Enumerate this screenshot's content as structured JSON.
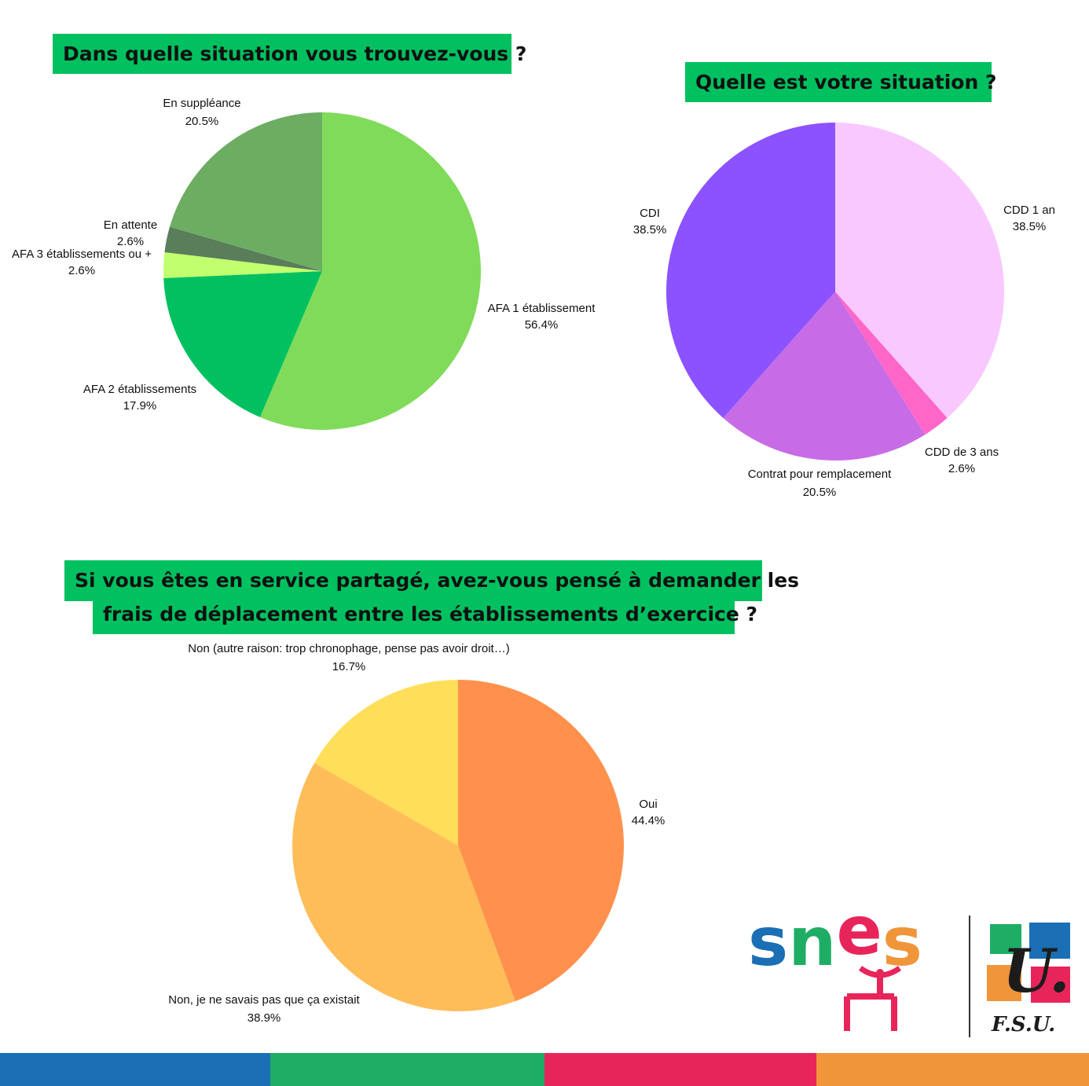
{
  "chart_data": [
    {
      "type": "pie",
      "title": "Dans quelle situation vous trouvez-vous ?",
      "slices": [
        {
          "label": "AFA 1 établissement",
          "value": 56.4,
          "value_label": "56.4%",
          "color": "#80db5a"
        },
        {
          "label": "AFA 2 établissements",
          "value": 17.9,
          "value_label": "17.9%",
          "color": "#00c060"
        },
        {
          "label": "AFA 3 établissements ou +",
          "value": 2.6,
          "value_label": "2.6%",
          "color": "#c2ff6e"
        },
        {
          "label": "En attente",
          "value": 2.6,
          "value_label": "2.6%",
          "color": "#5a7d5a"
        },
        {
          "label": "En suppléance",
          "value": 20.5,
          "value_label": "20.5%",
          "color": "#6cad62"
        }
      ]
    },
    {
      "type": "pie",
      "title": "Quelle est votre situation ?",
      "slices": [
        {
          "label": "CDD 1 an",
          "value": 38.5,
          "value_label": "38.5%",
          "color": "#f8c8ff"
        },
        {
          "label": "CDD de 3 ans",
          "value": 2.6,
          "value_label": "2.6%",
          "color": "#ff66c8"
        },
        {
          "label": "Contrat pour remplacement",
          "value": 20.5,
          "value_label": "20.5%",
          "color": "#c76ce6"
        },
        {
          "label": "CDI",
          "value": 38.5,
          "value_label": "38.5%",
          "color": "#8c52ff"
        }
      ]
    },
    {
      "type": "pie",
      "title_line1": "Si vous êtes en service partagé, avez-vous pensé à demander les",
      "title_line2": "frais de déplacement entre les établissements d’exercice ?",
      "slices": [
        {
          "label": "Oui",
          "value": 44.4,
          "value_label": "44.4%",
          "color": "#ff914d"
        },
        {
          "label": "Non, je ne savais pas que ça existait",
          "value": 38.9,
          "value_label": "38.9%",
          "color": "#ffbd59"
        },
        {
          "label": "Non (autre raison: trop chronophage, pense pas avoir droit…)",
          "value": 16.7,
          "value_label": "16.7%",
          "color": "#ffde59"
        }
      ]
    }
  ],
  "logo": {
    "snes_text": "snes",
    "fsu_letter": "U.",
    "fsu_text": "F.S.U.",
    "colors": [
      "#1a6fb5",
      "#1fad66",
      "#e8255a",
      "#f0953a"
    ]
  },
  "footer_colors": [
    "#1a6fb5",
    "#1fad66",
    "#e8255a",
    "#f0953a"
  ]
}
